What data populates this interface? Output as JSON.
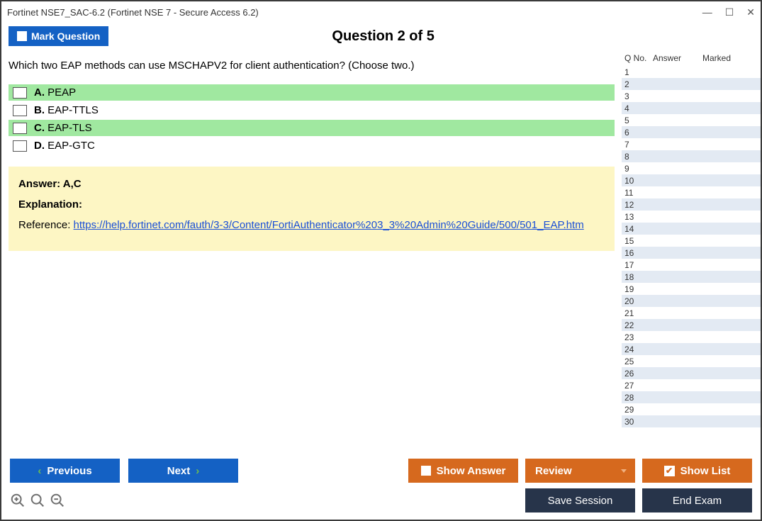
{
  "window": {
    "title": "Fortinet NSE7_SAC-6.2 (Fortinet NSE 7 - Secure Access 6.2)"
  },
  "header": {
    "mark_label": "Mark Question",
    "question_counter": "Question 2 of 5"
  },
  "question": {
    "text": "Which two EAP methods can use MSCHAPV2 for client authentication? (Choose two.)",
    "options": [
      {
        "letter": "A.",
        "text": "PEAP",
        "highlight": true
      },
      {
        "letter": "B.",
        "text": "EAP-TTLS",
        "highlight": false
      },
      {
        "letter": "C.",
        "text": "EAP-TLS",
        "highlight": true
      },
      {
        "letter": "D.",
        "text": "EAP-GTC",
        "highlight": false
      }
    ]
  },
  "answer_panel": {
    "answer_label": "Answer: A,C",
    "explanation_label": "Explanation:",
    "reference_prefix": "Reference: ",
    "reference_url": "https://help.fortinet.com/fauth/3-3/Content/FortiAuthenticator%203_3%20Admin%20Guide/500/501_EAP.htm"
  },
  "sidebar": {
    "col_qno": "Q No.",
    "col_answer": "Answer",
    "col_marked": "Marked",
    "row_count": 30
  },
  "buttons": {
    "previous": "Previous",
    "next": "Next",
    "show_answer": "Show Answer",
    "review": "Review",
    "show_list": "Show List",
    "save_session": "Save Session",
    "end_exam": "End Exam"
  },
  "colors": {
    "blue": "#1461c4",
    "orange": "#d6691e",
    "dark": "#27344a",
    "highlight": "#a0e8a0",
    "answer_bg": "#fdf6c4",
    "row_alt": "#e3eaf3"
  }
}
